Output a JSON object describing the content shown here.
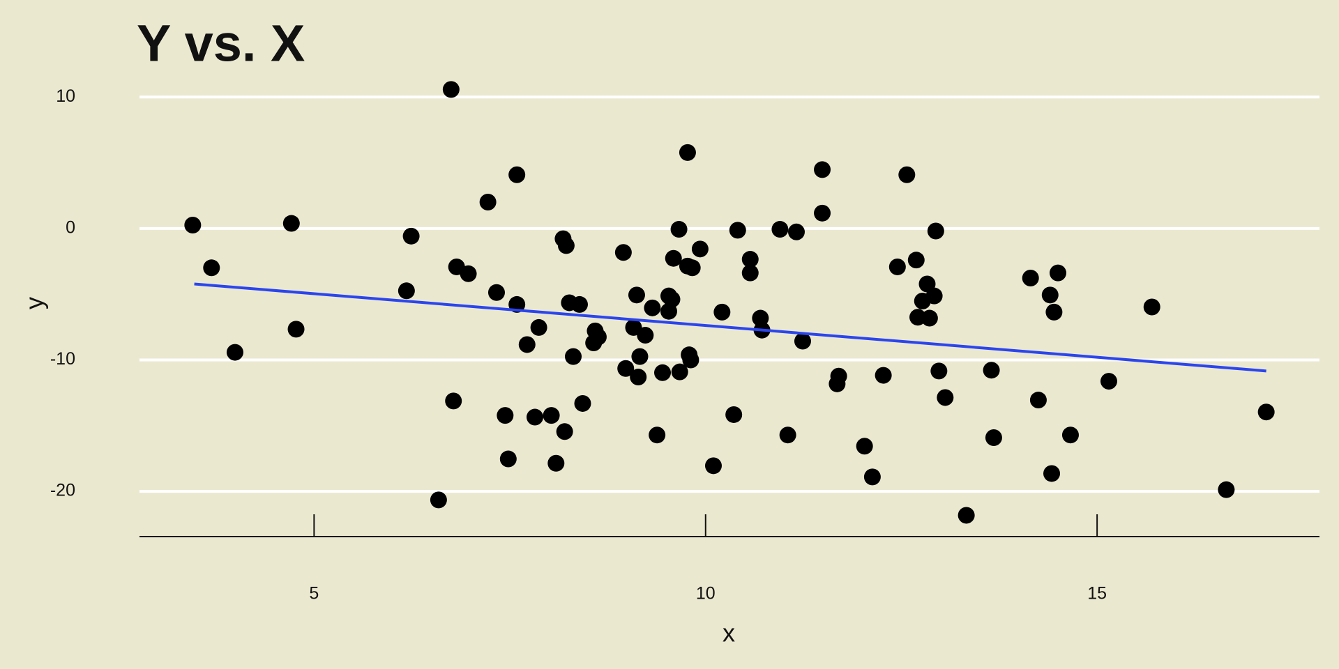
{
  "chart_data": {
    "type": "scatter",
    "title": "Y vs. X",
    "x_label": "x",
    "y_label": "y",
    "x": [
      3.45,
      3.69,
      3.99,
      4.71,
      4.77,
      6.18,
      6.24,
      6.59,
      6.75,
      6.78,
      6.82,
      6.97,
      7.22,
      7.33,
      7.44,
      7.48,
      7.59,
      7.59,
      7.72,
      7.82,
      7.87,
      8.03,
      8.09,
      8.18,
      8.2,
      8.22,
      8.26,
      8.31,
      8.39,
      8.43,
      8.57,
      8.59,
      8.63,
      8.95,
      8.98,
      9.08,
      9.12,
      9.14,
      9.16,
      9.23,
      9.32,
      9.38,
      9.45,
      9.53,
      9.53,
      9.57,
      9.59,
      9.66,
      9.67,
      9.77,
      9.77,
      9.79,
      9.83,
      9.81,
      9.93,
      10.1,
      10.21,
      10.36,
      10.41,
      10.57,
      10.57,
      10.7,
      10.72,
      10.95,
      11.05,
      11.16,
      11.24,
      11.49,
      11.49,
      11.68,
      11.7,
      12.03,
      12.13,
      12.27,
      12.45,
      12.57,
      12.69,
      12.71,
      12.77,
      12.83,
      12.86,
      12.92,
      12.94,
      12.98,
      13.06,
      13.33,
      13.65,
      13.68,
      14.15,
      14.25,
      14.4,
      14.42,
      14.45,
      14.5,
      14.66,
      15.15,
      15.7,
      16.65,
      17.16
    ],
    "values": [
      0.26,
      -2.99,
      -9.42,
      0.39,
      -7.66,
      -4.74,
      -0.58,
      -20.65,
      10.58,
      -13.12,
      -2.92,
      -3.44,
      2.01,
      -4.87,
      -14.22,
      -17.53,
      4.09,
      -5.78,
      -8.83,
      -14.35,
      -7.53,
      -14.22,
      -17.86,
      -0.78,
      -15.45,
      -1.3,
      -5.65,
      -9.74,
      -5.78,
      -13.31,
      -8.7,
      -7.79,
      -8.25,
      -1.82,
      -10.65,
      -7.53,
      -5.06,
      -11.3,
      -9.74,
      -8.12,
      -6.04,
      -15.71,
      -10.97,
      -5.13,
      -6.3,
      -5.39,
      -2.27,
      -0.06,
      -10.91,
      5.78,
      -2.86,
      -9.61,
      -2.99,
      -10.0,
      -1.56,
      -18.05,
      -6.36,
      -14.16,
      -0.13,
      -2.34,
      -3.38,
      -6.82,
      -7.73,
      -0.06,
      -15.71,
      -0.26,
      -8.57,
      4.48,
      1.17,
      -11.82,
      -11.23,
      -16.56,
      -18.9,
      -11.17,
      -2.92,
      4.09,
      -2.4,
      -6.75,
      -5.52,
      -4.22,
      -6.82,
      -5.13,
      -0.19,
      -10.84,
      -12.86,
      -21.82,
      -10.78,
      -15.91,
      -3.77,
      -13.05,
      -5.06,
      -18.64,
      -6.36,
      -3.38,
      -15.71,
      -11.62,
      -5.97,
      -19.87,
      -13.96
    ],
    "color": "#000000",
    "trend_line": {
      "x": [
        3.47,
        17.16
      ],
      "values": [
        -4.22,
        -10.84
      ],
      "color": "#2b45ee"
    },
    "xlim": [
      2.77,
      17.84
    ],
    "ylim": [
      -23.44,
      11.5
    ],
    "xticks": [
      5,
      10,
      15
    ],
    "yticks": [
      -20,
      -10,
      0,
      10
    ],
    "grid": true
  }
}
